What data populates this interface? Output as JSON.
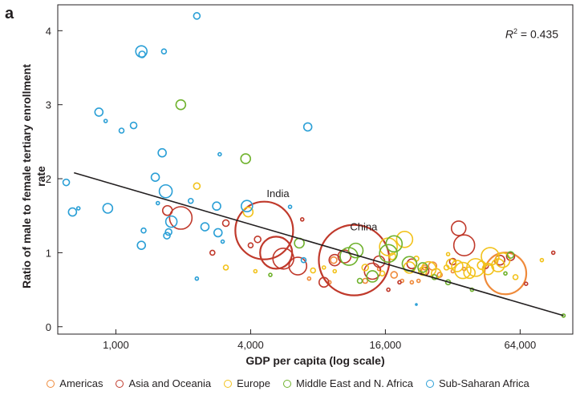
{
  "panel_letter": "a",
  "r2_label": "R",
  "r2_exp": "2",
  "r2_value": " = 0.435",
  "colors": {
    "Americas": "#ef8a3a",
    "Asia and Oceania": "#c0392b",
    "Europe": "#f2c21b",
    "Middle East and N. Africa": "#6fb22d",
    "Sub-Saharan Africa": "#2a9fd6",
    "trendline": "#231f20",
    "axis": "#231f20"
  },
  "chart_data": {
    "type": "scatter",
    "xlabel": "GDP per capita (log scale)",
    "ylabel": "Ratio of male to female tertiary enrollment rate",
    "x_scale": "log2",
    "xlim": [
      550,
      110000
    ],
    "ylim": [
      -0.1,
      4.35
    ],
    "x_ticks": [
      1000,
      4000,
      16000,
      64000
    ],
    "x_tick_labels": [
      "1,000",
      "4,000",
      "16,000",
      "64,000"
    ],
    "y_ticks": [
      0,
      1,
      2,
      3,
      4
    ],
    "y_tick_labels": [
      "0",
      "1",
      "2",
      "3",
      "4"
    ],
    "grid": false,
    "legend_position": "bottom",
    "trendline": {
      "x": [
        650,
        100000
      ],
      "y": [
        2.08,
        0.15
      ]
    },
    "annotations": [
      {
        "text": "India",
        "x": 5300,
        "y": 1.75
      },
      {
        "text": "China",
        "x": 12800,
        "y": 1.3
      }
    ],
    "series": [
      {
        "name": "Americas",
        "points": [
          [
            7300,
            0.65,
            2
          ],
          [
            9400,
            0.9,
            4
          ],
          [
            9000,
            0.6,
            2
          ],
          [
            13000,
            0.62,
            3
          ],
          [
            15000,
            0.78,
            2
          ],
          [
            17500,
            0.7,
            4
          ],
          [
            19000,
            0.62,
            2
          ],
          [
            21000,
            0.6,
            2
          ],
          [
            22500,
            0.62,
            2
          ],
          [
            24000,
            0.8,
            3
          ],
          [
            26000,
            0.82,
            5
          ],
          [
            28000,
            0.7,
            3
          ],
          [
            32000,
            0.75,
            2
          ],
          [
            36000,
            0.78,
            2
          ],
          [
            50000,
            0.88,
            2
          ],
          [
            55000,
            0.72,
            26
          ]
        ]
      },
      {
        "name": "Asia and Oceania",
        "points": [
          [
            1700,
            1.57,
            6
          ],
          [
            1950,
            1.47,
            14
          ],
          [
            2700,
            1.0,
            3
          ],
          [
            3100,
            1.4,
            4
          ],
          [
            4000,
            1.1,
            3
          ],
          [
            4600,
            1.3,
            36
          ],
          [
            4300,
            1.18,
            4
          ],
          [
            5200,
            1.0,
            20
          ],
          [
            5600,
            0.92,
            13
          ],
          [
            6500,
            0.82,
            11
          ],
          [
            6800,
            1.45,
            2
          ],
          [
            8500,
            0.6,
            6
          ],
          [
            9500,
            0.9,
            7
          ],
          [
            10500,
            0.95,
            8
          ],
          [
            11600,
            0.9,
            44
          ],
          [
            14000,
            0.75,
            10
          ],
          [
            15000,
            0.88,
            7
          ],
          [
            16500,
            0.5,
            2
          ],
          [
            18500,
            0.6,
            2
          ],
          [
            21000,
            0.85,
            6
          ],
          [
            24000,
            0.75,
            5
          ],
          [
            32000,
            0.88,
            4
          ],
          [
            34000,
            1.33,
            9
          ],
          [
            36000,
            1.1,
            13
          ],
          [
            45000,
            0.82,
            3
          ],
          [
            52000,
            0.9,
            6
          ],
          [
            58000,
            0.95,
            5
          ],
          [
            68000,
            0.58,
            2
          ],
          [
            90000,
            1.0,
            2
          ]
        ]
      },
      {
        "name": "Europe",
        "points": [
          [
            2300,
            1.9,
            4
          ],
          [
            3100,
            0.8,
            3
          ],
          [
            3900,
            1.55,
            6
          ],
          [
            4200,
            0.75,
            2
          ],
          [
            7600,
            0.76,
            3
          ],
          [
            8500,
            0.8,
            2
          ],
          [
            9500,
            0.75,
            2
          ],
          [
            13000,
            0.8,
            4
          ],
          [
            15500,
            0.72,
            3
          ],
          [
            16500,
            1.08,
            11
          ],
          [
            17200,
            0.95,
            4
          ],
          [
            19500,
            1.18,
            10
          ],
          [
            20500,
            0.8,
            7
          ],
          [
            22000,
            0.92,
            3
          ],
          [
            23500,
            0.75,
            5
          ],
          [
            25000,
            0.78,
            9
          ],
          [
            27000,
            0.72,
            6
          ],
          [
            30000,
            0.8,
            3
          ],
          [
            30500,
            0.98,
            2
          ],
          [
            31500,
            0.85,
            6
          ],
          [
            33500,
            0.82,
            7
          ],
          [
            35500,
            0.76,
            10
          ],
          [
            38000,
            0.73,
            7
          ],
          [
            40500,
            0.8,
            11
          ],
          [
            43000,
            0.83,
            5
          ],
          [
            46000,
            0.78,
            7
          ],
          [
            47000,
            0.95,
            11
          ],
          [
            51000,
            0.83,
            8
          ],
          [
            53500,
            0.9,
            9
          ],
          [
            61000,
            0.67,
            3
          ],
          [
            80000,
            0.9,
            2
          ]
        ]
      },
      {
        "name": "Middle East and N. Africa",
        "points": [
          [
            1950,
            3.0,
            6
          ],
          [
            3800,
            2.27,
            6
          ],
          [
            4900,
            0.7,
            2
          ],
          [
            6600,
            1.13,
            6
          ],
          [
            11000,
            0.95,
            11
          ],
          [
            11800,
            1.03,
            9
          ],
          [
            12300,
            0.62,
            3
          ],
          [
            14000,
            0.68,
            7
          ],
          [
            16500,
            0.99,
            11
          ],
          [
            17500,
            1.12,
            10
          ],
          [
            20500,
            0.85,
            9
          ],
          [
            23500,
            0.8,
            6
          ],
          [
            26500,
            0.67,
            3
          ],
          [
            30500,
            0.6,
            3
          ],
          [
            39000,
            0.5,
            2
          ],
          [
            55000,
            0.72,
            2
          ],
          [
            58000,
            0.97,
            4
          ],
          [
            100000,
            0.15,
            2
          ]
        ]
      },
      {
        "name": "Sub-Saharan Africa",
        "points": [
          [
            600,
            1.95,
            4
          ],
          [
            640,
            1.55,
            5
          ],
          [
            680,
            1.6,
            2
          ],
          [
            840,
            2.9,
            5
          ],
          [
            900,
            2.78,
            2
          ],
          [
            920,
            1.6,
            6
          ],
          [
            1060,
            2.65,
            3
          ],
          [
            1200,
            2.72,
            4
          ],
          [
            1300,
            1.1,
            5
          ],
          [
            1300,
            3.72,
            7
          ],
          [
            1310,
            3.68,
            4
          ],
          [
            1330,
            1.3,
            3
          ],
          [
            1500,
            2.02,
            5
          ],
          [
            1540,
            1.67,
            2
          ],
          [
            1610,
            2.35,
            5
          ],
          [
            1640,
            3.72,
            3
          ],
          [
            1670,
            1.83,
            8
          ],
          [
            1690,
            1.23,
            4
          ],
          [
            1720,
            1.28,
            4
          ],
          [
            1770,
            1.42,
            7
          ],
          [
            2160,
            1.7,
            3
          ],
          [
            2300,
            4.2,
            4
          ],
          [
            2300,
            0.65,
            2
          ],
          [
            2500,
            1.35,
            5
          ],
          [
            2820,
            1.63,
            5
          ],
          [
            2860,
            1.27,
            5
          ],
          [
            2910,
            2.33,
            2
          ],
          [
            3000,
            1.15,
            2
          ],
          [
            3850,
            1.63,
            7
          ],
          [
            6000,
            1.62,
            2
          ],
          [
            6900,
            0.9,
            3
          ],
          [
            7200,
            2.7,
            5
          ],
          [
            22000,
            0.3,
            1
          ]
        ]
      }
    ]
  }
}
